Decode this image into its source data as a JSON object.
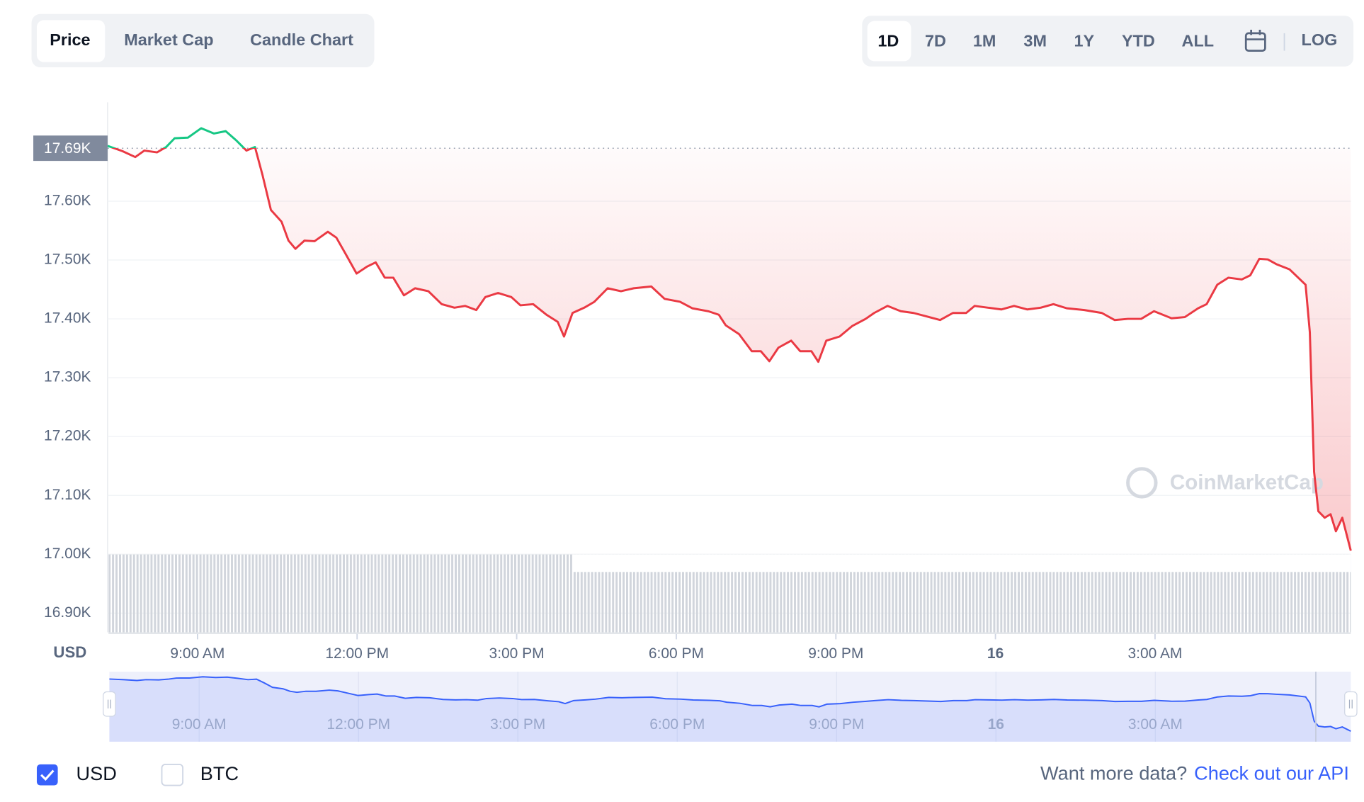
{
  "tabs": [
    "Price",
    "Market Cap",
    "Candle Chart"
  ],
  "ranges": [
    "1D",
    "7D",
    "1M",
    "3M",
    "1Y",
    "YTD",
    "ALL"
  ],
  "log_toggle": "LOG",
  "watermark": "CoinMarketCap",
  "currencies": [
    {
      "label": "USD",
      "checked": true
    },
    {
      "label": "BTC",
      "checked": false
    }
  ],
  "footer": {
    "text": "Want more data?",
    "link": "Check out our API"
  },
  "chart_data": {
    "type": "line",
    "axis_label": "USD",
    "x": [
      7.31,
      7.59,
      7.83,
      8.0,
      8.24,
      8.41,
      8.57,
      8.82,
      9.07,
      9.31,
      9.53,
      9.72,
      9.92,
      10.08,
      10.22,
      10.38,
      10.58,
      10.71,
      10.84,
      11.01,
      11.2,
      11.45,
      11.61,
      11.78,
      11.99,
      12.19,
      12.35,
      12.52,
      12.68,
      12.88,
      13.09,
      13.34,
      13.59,
      13.83,
      14.03,
      14.24,
      14.41,
      14.65,
      14.9,
      15.07,
      15.31,
      15.56,
      15.77,
      15.89,
      16.05,
      16.27,
      16.46,
      16.71,
      16.96,
      17.2,
      17.53,
      17.78,
      18.07,
      18.3,
      18.6,
      18.8,
      18.93,
      19.18,
      19.42,
      19.59,
      19.75,
      19.92,
      20.16,
      20.33,
      20.54,
      20.67,
      20.82,
      21.07,
      21.31,
      21.56,
      21.72,
      21.97,
      22.22,
      22.46,
      22.71,
      22.96,
      23.2,
      23.45,
      23.61,
      23.86,
      24.11,
      24.35,
      24.6,
      24.85,
      25.09,
      25.34,
      25.67,
      26.0,
      26.24,
      26.49,
      26.74,
      26.98,
      27.31,
      27.56,
      27.81,
      27.97,
      28.17,
      28.38,
      28.63,
      28.79,
      28.96,
      29.12,
      29.28,
      29.53,
      29.83,
      29.91,
      29.99,
      30.07,
      30.19,
      30.3,
      30.4,
      30.52,
      30.68
    ],
    "series": [
      {
        "name": "Price",
        "values": [
          17694,
          17685,
          17675,
          17686,
          17683,
          17692,
          17707,
          17708,
          17724,
          17715,
          17719,
          17704,
          17686,
          17692,
          17645,
          17585,
          17565,
          17533,
          17519,
          17533,
          17532,
          17548,
          17538,
          17511,
          17477,
          17489,
          17496,
          17470,
          17470,
          17440,
          17452,
          17447,
          17425,
          17419,
          17422,
          17415,
          17437,
          17444,
          17437,
          17423,
          17425,
          17407,
          17395,
          17370,
          17410,
          17419,
          17429,
          17452,
          17447,
          17452,
          17455,
          17434,
          17429,
          17418,
          17413,
          17407,
          17389,
          17374,
          17345,
          17345,
          17328,
          17351,
          17363,
          17345,
          17345,
          17327,
          17363,
          17370,
          17388,
          17400,
          17410,
          17422,
          17413,
          17410,
          17404,
          17398,
          17410,
          17410,
          17422,
          17419,
          17416,
          17422,
          17416,
          17419,
          17425,
          17418,
          17415,
          17410,
          17398,
          17400,
          17400,
          17413,
          17401,
          17403,
          17418,
          17425,
          17458,
          17470,
          17467,
          17474,
          17502,
          17501,
          17493,
          17484,
          17458,
          17377,
          17140,
          17073,
          17062,
          17068,
          17039,
          17062,
          17006
        ],
        "color_up": "#16c784",
        "color_down": "#ea3943"
      }
    ],
    "reference": {
      "value": 17690,
      "label": "17.69K"
    },
    "xlim": [
      7.31,
      30.68
    ],
    "xticks": [
      {
        "value": 9,
        "label": "9:00 AM"
      },
      {
        "value": 12,
        "label": "12:00 PM"
      },
      {
        "value": 15,
        "label": "3:00 PM"
      },
      {
        "value": 18,
        "label": "6:00 PM"
      },
      {
        "value": 21,
        "label": "9:00 PM"
      },
      {
        "value": 24,
        "label": "16"
      },
      {
        "value": 27,
        "label": "3:00 AM"
      }
    ],
    "ylim": [
      16868,
      17768
    ],
    "yticks": [
      {
        "value": 16900,
        "label": "16.90K"
      },
      {
        "value": 17000,
        "label": "17.00K"
      },
      {
        "value": 17100,
        "label": "17.10K"
      },
      {
        "value": 17200,
        "label": "17.20K"
      },
      {
        "value": 17300,
        "label": "17.30K"
      },
      {
        "value": 17400,
        "label": "17.40K"
      },
      {
        "value": 17500,
        "label": "17.50K"
      },
      {
        "value": 17600,
        "label": "17.60K"
      }
    ],
    "grid": true,
    "navigator_color": "#3861fb"
  }
}
